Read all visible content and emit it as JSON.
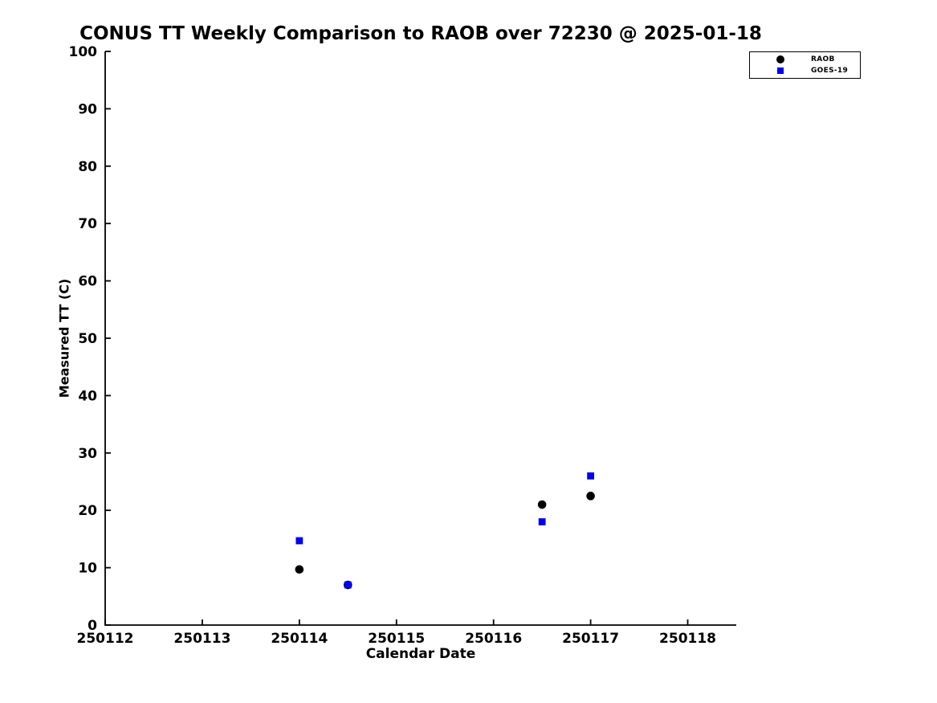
{
  "chart_data": {
    "type": "scatter",
    "title": "CONUS TT Weekly Comparison to RAOB over 72230 @ 2025-01-18",
    "xlabel": "Calendar Date",
    "ylabel": "Measured TT (C)",
    "xlim": [
      250112,
      250118.5
    ],
    "ylim": [
      0,
      100
    ],
    "xticks": [
      "250112",
      "250113",
      "250114",
      "250115",
      "250116",
      "250117",
      "250118"
    ],
    "xtick_values": [
      250112,
      250113,
      250114,
      250115,
      250116,
      250117,
      250118
    ],
    "yticks": [
      "0",
      "10",
      "20",
      "30",
      "40",
      "50",
      "60",
      "70",
      "80",
      "90",
      "100"
    ],
    "ytick_values": [
      0,
      10,
      20,
      30,
      40,
      50,
      60,
      70,
      80,
      90,
      100
    ],
    "grid": false,
    "legend": {
      "position": "top-right",
      "entries": [
        "RAOB",
        "GOES-19"
      ]
    },
    "colors": {
      "axis": "#000000",
      "raob": "#000000",
      "goes19": "#0000ee"
    },
    "series": [
      {
        "name": "RAOB",
        "marker": "circle",
        "color": "#000000",
        "points": [
          [
            250114,
            9.7
          ],
          [
            250114.5,
            7.0
          ],
          [
            250116.5,
            21.0
          ],
          [
            250117,
            22.5
          ]
        ]
      },
      {
        "name": "GOES-19",
        "marker": "square",
        "color": "#0000ee",
        "points": [
          [
            250114,
            14.7
          ],
          [
            250114.5,
            7.0
          ],
          [
            250116.5,
            18.0
          ],
          [
            250117,
            26.0
          ]
        ]
      }
    ]
  }
}
